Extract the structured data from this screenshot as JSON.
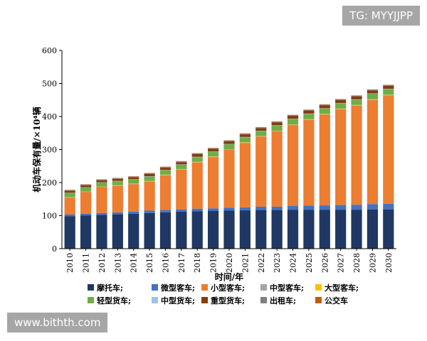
{
  "watermarks": {
    "top_right": "TG: MYYJJPP",
    "bottom_left": "www.bithth.com"
  },
  "chart_data": {
    "type": "bar",
    "stacked": true,
    "xlabel": "时间/年",
    "ylabel": "机动车保有量/×10⁴辆",
    "ylim": [
      0,
      600
    ],
    "yticks": [
      0,
      100,
      200,
      300,
      400,
      500,
      600
    ],
    "grid": false,
    "legend_position": "bottom",
    "categories": [
      "2010",
      "2011",
      "2012",
      "2013",
      "2014",
      "2015",
      "2016",
      "2017",
      "2018",
      "2019",
      "2020",
      "2021",
      "2022",
      "2023",
      "2024",
      "2025",
      "2026",
      "2027",
      "2028",
      "2029",
      "2030"
    ],
    "series": [
      {
        "name": "摩托车;",
        "color": "#203864",
        "values": [
          98,
          100,
          102,
          104,
          106,
          108,
          110,
          112,
          113,
          114,
          115,
          116,
          117,
          117,
          118,
          118,
          118,
          118,
          118,
          119,
          119
        ]
      },
      {
        "name": "微型客车;",
        "color": "#4472c4",
        "values": [
          6,
          6,
          6,
          6,
          6,
          7,
          7,
          7,
          8,
          8,
          9,
          9,
          10,
          10,
          11,
          12,
          13,
          14,
          15,
          16,
          17
        ]
      },
      {
        "name": "小型客车;",
        "color": "#ed7d31",
        "values": [
          50,
          65,
          78,
          80,
          83,
          88,
          105,
          120,
          140,
          155,
          175,
          195,
          212,
          228,
          245,
          260,
          275,
          290,
          300,
          315,
          328
        ]
      },
      {
        "name": "中型客车;",
        "color": "#a5a5a5",
        "values": [
          1,
          1,
          1,
          1,
          1,
          1,
          1,
          1,
          1,
          1,
          1,
          1,
          1,
          1,
          1,
          1,
          1,
          1,
          1,
          1,
          1
        ]
      },
      {
        "name": "大型客车;",
        "color": "#ffc000",
        "values": [
          1,
          1,
          1,
          1,
          1,
          1,
          1,
          1,
          1,
          1,
          1,
          1,
          1,
          1,
          1,
          1,
          1,
          1,
          1,
          1,
          1
        ]
      },
      {
        "name": "轻型货车;",
        "color": "#70ad47",
        "values": [
          12,
          12,
          12,
          12,
          12,
          13,
          13,
          13,
          14,
          14,
          15,
          15,
          15,
          16,
          16,
          16,
          16,
          16,
          16,
          17,
          17
        ]
      },
      {
        "name": "中型货车;",
        "color": "#9dc3e6",
        "values": [
          1,
          1,
          1,
          1,
          1,
          1,
          1,
          1,
          1,
          1,
          1,
          1,
          1,
          1,
          1,
          1,
          1,
          1,
          1,
          1,
          1
        ]
      },
      {
        "name": "重型货车;",
        "color": "#843c0c",
        "values": [
          6,
          6,
          6,
          6,
          6,
          7,
          7,
          7,
          8,
          8,
          8,
          8,
          8,
          8,
          9,
          9,
          9,
          9,
          9,
          9,
          9
        ]
      },
      {
        "name": "出租车;",
        "color": "#7f7f7f",
        "values": [
          2,
          2,
          2,
          2,
          2,
          2,
          2,
          2,
          2,
          2,
          2,
          2,
          2,
          2,
          2,
          2,
          2,
          2,
          2,
          2,
          2
        ]
      },
      {
        "name": "公交车",
        "color": "#c55a11",
        "values": [
          1,
          1,
          1,
          1,
          1,
          1,
          1,
          1,
          1,
          1,
          1,
          1,
          1,
          1,
          1,
          1,
          1,
          1,
          1,
          1,
          1
        ]
      }
    ]
  }
}
